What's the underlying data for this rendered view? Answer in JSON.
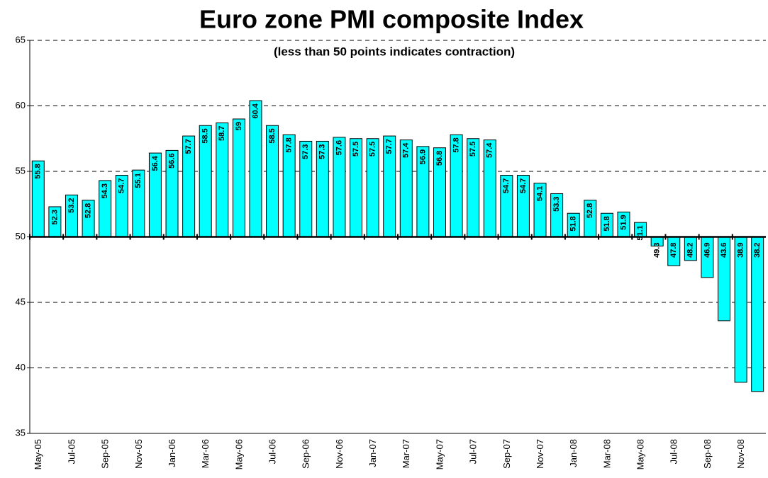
{
  "chart_data": {
    "type": "bar",
    "title": "Euro zone PMI composite Index",
    "subtitle": "(less than 50 points indicates contraction)",
    "categories": [
      "May-05",
      null,
      "Jul-05",
      null,
      "Sep-05",
      null,
      "Nov-05",
      null,
      "Jan-06",
      null,
      "Mar-06",
      null,
      "May-06",
      null,
      "Jul-06",
      null,
      "Sep-06",
      null,
      "Nov-06",
      null,
      "Jan-07",
      null,
      "Mar-07",
      null,
      "May-07",
      null,
      "Jul-07",
      null,
      "Sep-07",
      null,
      "Nov-07",
      null,
      "Jan-08",
      null,
      "Mar-08",
      null,
      "May-08",
      null,
      "Jul-08",
      null,
      "Sep-08",
      null,
      "Nov-08",
      null
    ],
    "values": [
      55.8,
      52.3,
      53.2,
      52.8,
      54.3,
      54.7,
      55.1,
      56.4,
      56.6,
      57.7,
      58.5,
      58.7,
      59,
      60.4,
      58.5,
      57.8,
      57.3,
      57.3,
      57.6,
      57.5,
      57.5,
      57.7,
      57.4,
      56.9,
      56.8,
      57.8,
      57.5,
      57.4,
      54.7,
      54.7,
      54.1,
      53.3,
      51.8,
      52.8,
      51.8,
      51.9,
      51.1,
      49.3,
      47.8,
      48.2,
      46.9,
      43.6,
      38.9,
      38.2
    ],
    "color": "#00ffff",
    "ylim": [
      35,
      65
    ],
    "yticks": [
      35,
      40,
      45,
      50,
      55,
      60,
      65
    ],
    "x_axis_crosses_at": 50,
    "grid": true
  }
}
